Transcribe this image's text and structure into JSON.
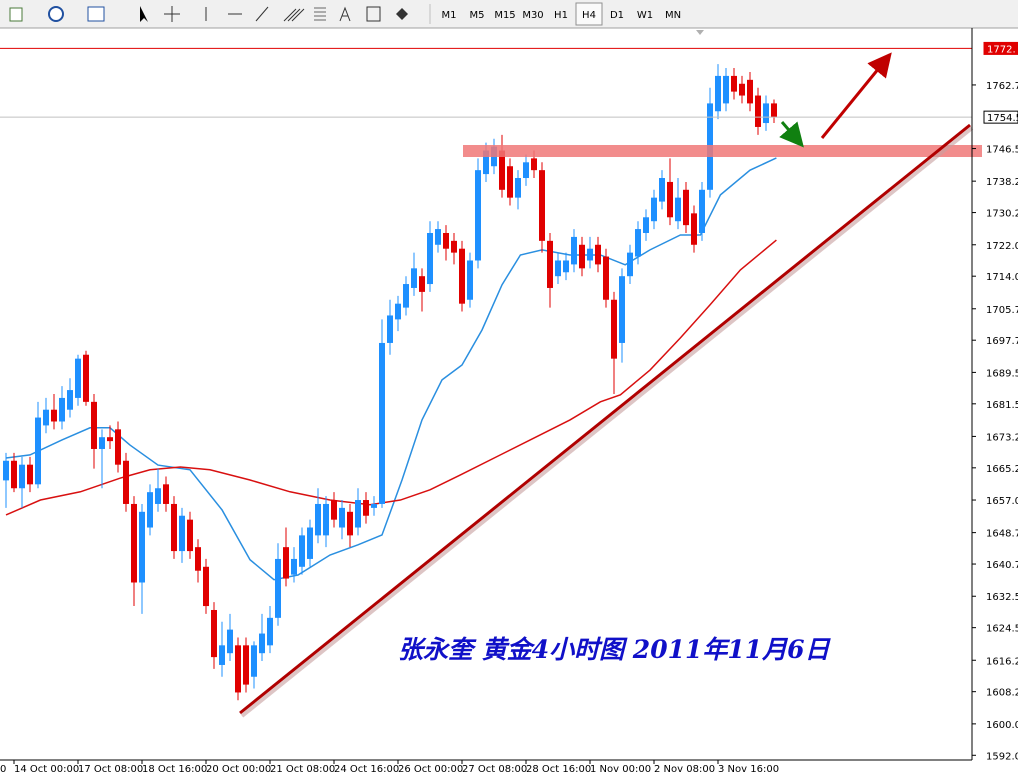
{
  "toolbar": {
    "timeframes": [
      "M1",
      "M5",
      "M15",
      "M30",
      "H1",
      "H4",
      "D1",
      "W1",
      "MN"
    ],
    "selected": 5
  },
  "chart_data": {
    "type": "candlestick",
    "caption": "张永奎 黄金4小时图  2011年11月6日",
    "x_label_fragment": "0",
    "categories": [
      null,
      "14 Oct 00:00",
      null,
      null,
      null,
      null,
      null,
      null,
      null,
      "17 Oct 08:00",
      null,
      null,
      null,
      null,
      null,
      null,
      null,
      "18 Oct 16:00",
      null,
      null,
      null,
      null,
      null,
      null,
      null,
      "20 Oct 00:00",
      null,
      null,
      null,
      null,
      null,
      null,
      null,
      "21 Oct 08:00",
      null,
      null,
      null,
      null,
      null,
      null,
      null,
      "24 Oct 16:00",
      null,
      null,
      null,
      null,
      null,
      null,
      null,
      "26 Oct 00:00",
      null,
      null,
      null,
      null,
      null,
      null,
      null,
      "27 Oct 08:00",
      null,
      null,
      null,
      null,
      null,
      null,
      null,
      "28 Oct 16:00",
      null,
      null,
      null,
      null,
      null,
      null,
      null,
      "1 Nov 00:00",
      null,
      null,
      null,
      null,
      null,
      null,
      null,
      "2 Nov 08:00",
      null,
      null,
      null,
      null,
      null,
      null,
      null,
      "3 Nov 16:00",
      null,
      null,
      null,
      null,
      null,
      null,
      null
    ],
    "open": [
      1662,
      1667,
      1660,
      1666,
      1661,
      1676,
      1680,
      1677,
      1680,
      1683,
      1694,
      1682,
      1670,
      1673,
      1675,
      1667,
      1656,
      1636,
      1650,
      1656,
      1661,
      1656,
      1644,
      1652,
      1645,
      1640,
      1629,
      1615,
      1618,
      1620,
      1620,
      1612,
      1618,
      1620,
      1627,
      1645,
      1638,
      1640,
      1642,
      1648,
      1648,
      1657,
      1650,
      1654,
      1650,
      1657,
      1655,
      1656,
      1697,
      1703,
      1706,
      1711,
      1714,
      1712,
      1722,
      1725,
      1723,
      1721,
      1708,
      1718,
      1740,
      1742,
      1746,
      1742,
      1734,
      1739,
      1744,
      1741,
      1723,
      1714,
      1715,
      1717,
      1722,
      1718,
      1722,
      1719,
      1708,
      1697,
      1714,
      1719,
      1725,
      1728,
      1733,
      1738,
      1728,
      1736,
      1730,
      1725,
      1736,
      1756,
      1758,
      1765,
      1763,
      1764,
      1760,
      1753,
      1758
    ],
    "high": [
      1669,
      1669,
      1668,
      1668,
      1682,
      1683,
      1684,
      1686,
      1688,
      1694,
      1695,
      1684,
      1675,
      1676,
      1677,
      1669,
      1658,
      1656,
      1661,
      1665,
      1663,
      1658,
      1655,
      1654,
      1647,
      1642,
      1631,
      1626,
      1628,
      1622,
      1622,
      1621,
      1628,
      1630,
      1646,
      1650,
      1645,
      1650,
      1652,
      1660,
      1658,
      1659,
      1657,
      1656,
      1660,
      1659,
      1658,
      1703,
      1708,
      1709,
      1714,
      1720,
      1716,
      1728,
      1728,
      1727,
      1725,
      1723,
      1720,
      1744,
      1748,
      1749,
      1750,
      1744,
      1741,
      1745,
      1746,
      1743,
      1725,
      1720,
      1720,
      1726,
      1724,
      1724,
      1724,
      1721,
      1710,
      1716,
      1722,
      1728,
      1731,
      1736,
      1741,
      1744,
      1739,
      1738,
      1732,
      1738,
      1762,
      1768,
      1767,
      1767,
      1765,
      1766,
      1762,
      1760,
      1759
    ],
    "low": [
      1655,
      1659,
      1655,
      1659,
      1660,
      1674,
      1675,
      1675,
      1678,
      1681,
      1681,
      1665,
      1660,
      1670,
      1664,
      1654,
      1630,
      1628,
      1648,
      1654,
      1654,
      1642,
      1641,
      1642,
      1636,
      1628,
      1614,
      1612,
      1616,
      1606,
      1608,
      1609,
      1616,
      1618,
      1625,
      1635,
      1636,
      1638,
      1640,
      1646,
      1645,
      1650,
      1647,
      1645,
      1648,
      1651,
      1653,
      1655,
      1694,
      1700,
      1704,
      1709,
      1705,
      1710,
      1720,
      1718,
      1717,
      1705,
      1706,
      1716,
      1738,
      1740,
      1734,
      1732,
      1731,
      1737,
      1739,
      1720,
      1706,
      1712,
      1713,
      1715,
      1714,
      1716,
      1715,
      1706,
      1684,
      1692,
      1712,
      1717,
      1723,
      1726,
      1731,
      1727,
      1726,
      1725,
      1720,
      1723,
      1734,
      1754,
      1756,
      1759,
      1758,
      1756,
      1750,
      1751,
      1753
    ],
    "close": [
      1667,
      1660,
      1666,
      1661,
      1678,
      1680,
      1677,
      1683,
      1685,
      1693,
      1682,
      1670,
      1673,
      1672,
      1666,
      1656,
      1636,
      1654,
      1659,
      1660,
      1656,
      1644,
      1653,
      1644,
      1639,
      1630,
      1617,
      1620,
      1624,
      1608,
      1610,
      1620,
      1623,
      1627,
      1642,
      1637,
      1642,
      1648,
      1650,
      1656,
      1656,
      1652,
      1655,
      1648,
      1657,
      1653,
      1656,
      1697,
      1704,
      1707,
      1712,
      1716,
      1710,
      1725,
      1726,
      1721,
      1720,
      1707,
      1718,
      1741,
      1746,
      1747,
      1736,
      1734,
      1739,
      1743,
      1741,
      1723,
      1711,
      1718,
      1718,
      1724,
      1716,
      1721,
      1717,
      1708,
      1693,
      1714,
      1720,
      1726,
      1729,
      1734,
      1739,
      1729,
      1734,
      1727,
      1722,
      1736,
      1758,
      1765,
      1765,
      1761,
      1760,
      1758,
      1752,
      1758,
      1754.5
    ],
    "up_color": "#1e90ff",
    "down_color": "#e00000",
    "overlays": [
      {
        "color": "#2a8fe0",
        "x": [
          0,
          3,
          7,
          10.5,
          13,
          15.5,
          19,
          23,
          27,
          30.5,
          33.5,
          36.5,
          40.5,
          44,
          47,
          49.5,
          52,
          54.5,
          57,
          59.5,
          62,
          64.3,
          67,
          70.5,
          74.3,
          77.4,
          80.5,
          84.3,
          86.8,
          89.3,
          93,
          96.3
        ],
        "values": [
          1667.7,
          1668.5,
          1672.3,
          1675.4,
          1675.4,
          1671.0,
          1665.9,
          1664.7,
          1654.5,
          1641.8,
          1636.7,
          1637.9,
          1643.0,
          1645.6,
          1648.1,
          1662.1,
          1677.4,
          1687.6,
          1691.4,
          1700.3,
          1711.8,
          1719.4,
          1720.7,
          1719.4,
          1719.4,
          1716.9,
          1720.7,
          1724.5,
          1724.5,
          1734.7,
          1741.0,
          1744.1
        ]
      },
      {
        "color": "#d81010",
        "x": [
          0,
          4.3,
          9.3,
          14.3,
          18,
          21.8,
          25.5,
          30.5,
          35.5,
          40.5,
          45.5,
          49.3,
          53,
          56.8,
          61.8,
          66.8,
          70.5,
          74.3,
          76.8,
          80.5,
          84.3,
          88,
          91.8,
          96.3
        ],
        "values": [
          1653.2,
          1657.0,
          1659.1,
          1662.6,
          1664.7,
          1665.4,
          1664.7,
          1662.1,
          1659.1,
          1657.0,
          1655.8,
          1657.0,
          1659.6,
          1663.4,
          1668.5,
          1673.6,
          1677.4,
          1682.0,
          1683.8,
          1690.1,
          1698.3,
          1706.7,
          1715.6,
          1723.2
        ]
      }
    ],
    "levels": [
      {
        "value": 1772,
        "label": "1772.",
        "color": "#e00000",
        "text_color": "#ffffff"
      },
      {
        "value": 1754.5,
        "label": "1754.5",
        "color": "#c0c0c0",
        "text_color": "#000000"
      }
    ],
    "ylim": [
      1590.8,
      1777.2
    ],
    "yticks": [
      {
        "value": 1592,
        "label": "1592.0"
      },
      {
        "value": 1600,
        "label": "1600.0"
      },
      1608.2,
      1616.2,
      1624.5,
      1632.5,
      1640.7,
      1648.7,
      {
        "value": 1657,
        "label": "1657.0"
      },
      1665.2,
      1673.2,
      1681.5,
      1689.5,
      1697.7,
      1705.7,
      {
        "value": 1714,
        "label": "1714.0"
      },
      {
        "value": 1722,
        "label": "1722.0"
      },
      1730.2,
      1738.2,
      1746.5,
      1762.7
    ]
  }
}
